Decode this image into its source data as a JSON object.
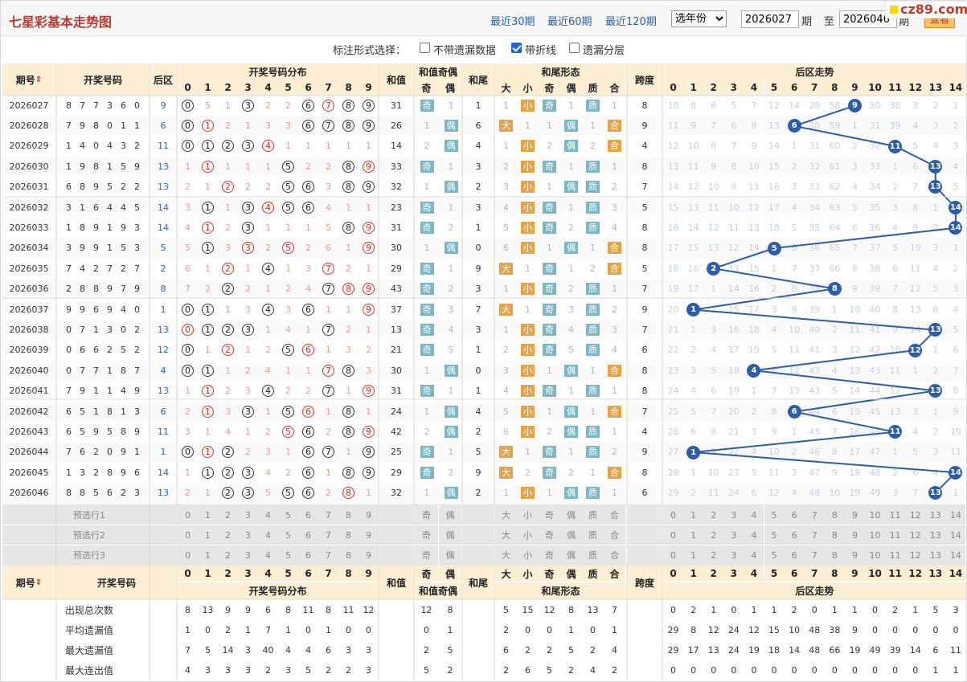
{
  "header": {
    "title": "七星彩基本走势图",
    "recent": [
      "最近30期",
      "最近60期",
      "最近120期"
    ],
    "year_select": "选年份",
    "from_issue": "2026027",
    "period_label": "期",
    "to_label": "至",
    "to_issue": "2026046",
    "period_label2": "期",
    "query": "查看",
    "watermark": "cz89.com"
  },
  "options": {
    "label": "标注形式选择：",
    "items": [
      {
        "label": "不带遗漏数据",
        "checked": false
      },
      {
        "label": "带折线",
        "checked": true
      },
      {
        "label": "遗漏分层",
        "checked": false
      }
    ]
  },
  "columns": {
    "issue": "期号",
    "draw": "开奖号码",
    "back": "后区",
    "dist": "开奖号码分布",
    "sum": "和值",
    "parity": "和值奇偶",
    "odd": "奇",
    "even": "偶",
    "tail": "和尾",
    "shape": "和尾形态",
    "shape_labels": [
      "大",
      "小",
      "奇",
      "偶",
      "质",
      "合"
    ],
    "span": "跨度",
    "trend": "后区走势"
  },
  "digits": [
    "0",
    "1",
    "2",
    "3",
    "4",
    "5",
    "6",
    "7",
    "8",
    "9"
  ],
  "trend_digits": [
    "0",
    "1",
    "2",
    "3",
    "4",
    "5",
    "6",
    "7",
    "8",
    "9",
    "10",
    "11",
    "12",
    "13",
    "14"
  ],
  "rows": [
    {
      "issue": "2026027",
      "nums": [
        "8",
        "7",
        "7",
        "3",
        "6",
        "0"
      ],
      "back": "9",
      "dist": [
        "B",
        "5",
        "1",
        "B",
        "2",
        "2",
        "B",
        "R",
        "B",
        "B"
      ],
      "sum": "31",
      "pa": [
        "奇",
        "1"
      ],
      "tail": "1",
      "shape": [
        "1",
        "小",
        "奇",
        "1",
        "质",
        "1"
      ],
      "span": "8",
      "trend": [
        "10",
        "8",
        "6",
        "5",
        "7",
        "12",
        "14",
        "29",
        "58",
        "B",
        "30",
        "38",
        "3",
        "2",
        "1"
      ]
    },
    {
      "issue": "2026028",
      "nums": [
        "7",
        "9",
        "8",
        "0",
        "1",
        "1"
      ],
      "back": "6",
      "dist": [
        "B",
        "R",
        "2",
        "1",
        "3",
        "3",
        "B",
        "B",
        "B",
        "B"
      ],
      "sum": "26",
      "pa": [
        "1",
        "偶"
      ],
      "tail": "6",
      "shape": [
        "大",
        "1",
        "1",
        "偶",
        "1",
        "合"
      ],
      "span": "9",
      "trend": [
        "11",
        "9",
        "7",
        "6",
        "8",
        "13",
        "B",
        "30",
        "59",
        "1",
        "31",
        "39",
        "4",
        "3",
        "2"
      ]
    },
    {
      "issue": "2026029",
      "nums": [
        "1",
        "4",
        "0",
        "4",
        "3",
        "2"
      ],
      "back": "11",
      "dist": [
        "B",
        "B",
        "B",
        "B",
        "R",
        "1",
        "1",
        "1",
        "1",
        "1"
      ],
      "sum": "14",
      "pa": [
        "2",
        "偶"
      ],
      "tail": "4",
      "shape": [
        "1",
        "小",
        "2",
        "偶",
        "2",
        "合"
      ],
      "span": "4",
      "trend": [
        "12",
        "10",
        "8",
        "7",
        "9",
        "14",
        "1",
        "31",
        "60",
        "2",
        "32",
        "B",
        "5",
        "4",
        "3"
      ]
    },
    {
      "issue": "2026030",
      "nums": [
        "1",
        "9",
        "8",
        "1",
        "5",
        "9"
      ],
      "back": "13",
      "dist": [
        "1",
        "R",
        "1",
        "1",
        "1",
        "B",
        "2",
        "2",
        "B",
        "R"
      ],
      "sum": "33",
      "pa": [
        "奇",
        "1"
      ],
      "tail": "3",
      "shape": [
        "2",
        "小",
        "奇",
        "1",
        "质",
        "1"
      ],
      "span": "8",
      "trend": [
        "13",
        "11",
        "9",
        "8",
        "10",
        "15",
        "2",
        "32",
        "61",
        "3",
        "33",
        "1",
        "6",
        "B",
        "4"
      ]
    },
    {
      "issue": "2026031",
      "nums": [
        "6",
        "8",
        "9",
        "5",
        "2",
        "2"
      ],
      "back": "13",
      "dist": [
        "2",
        "1",
        "R",
        "2",
        "2",
        "B",
        "B",
        "3",
        "B",
        "B"
      ],
      "sum": "32",
      "pa": [
        "1",
        "偶"
      ],
      "tail": "2",
      "shape": [
        "3",
        "小",
        "1",
        "偶",
        "质",
        "2"
      ],
      "span": "7",
      "trend": [
        "14",
        "12",
        "10",
        "9",
        "11",
        "16",
        "3",
        "33",
        "62",
        "4",
        "34",
        "2",
        "7",
        "B",
        "5"
      ]
    },
    {
      "issue": "2026032",
      "nums": [
        "3",
        "1",
        "6",
        "4",
        "4",
        "5"
      ],
      "back": "14",
      "dist": [
        "3",
        "B",
        "1",
        "B",
        "R",
        "B",
        "B",
        "4",
        "1",
        "1"
      ],
      "sum": "23",
      "pa": [
        "奇",
        "1"
      ],
      "tail": "3",
      "shape": [
        "4",
        "小",
        "奇",
        "1",
        "质",
        "3"
      ],
      "span": "5",
      "trend": [
        "15",
        "13",
        "11",
        "10",
        "12",
        "17",
        "4",
        "34",
        "63",
        "5",
        "35",
        "3",
        "8",
        "1",
        "B"
      ]
    },
    {
      "issue": "2026033",
      "nums": [
        "1",
        "8",
        "9",
        "1",
        "9",
        "3"
      ],
      "back": "14",
      "dist": [
        "4",
        "R",
        "2",
        "B",
        "1",
        "1",
        "1",
        "5",
        "B",
        "R"
      ],
      "sum": "31",
      "pa": [
        "奇",
        "2"
      ],
      "tail": "1",
      "shape": [
        "5",
        "小",
        "奇",
        "2",
        "质",
        "4"
      ],
      "span": "8",
      "trend": [
        "16",
        "14",
        "12",
        "11",
        "13",
        "18",
        "5",
        "35",
        "64",
        "6",
        "36",
        "4",
        "9",
        "2",
        "B"
      ]
    },
    {
      "issue": "2026034",
      "nums": [
        "3",
        "9",
        "9",
        "1",
        "5",
        "3"
      ],
      "back": "5",
      "dist": [
        "5",
        "B",
        "3",
        "R",
        "2",
        "R",
        "2",
        "6",
        "1",
        "R"
      ],
      "sum": "30",
      "pa": [
        "1",
        "偶"
      ],
      "tail": "0",
      "shape": [
        "6",
        "小",
        "1",
        "偶",
        "1",
        "合"
      ],
      "span": "8",
      "trend": [
        "17",
        "15",
        "13",
        "12",
        "14",
        "B",
        "6",
        "36",
        "65",
        "7",
        "37",
        "5",
        "10",
        "3",
        "1"
      ]
    },
    {
      "issue": "2026035",
      "nums": [
        "7",
        "4",
        "2",
        "7",
        "2",
        "7"
      ],
      "back": "2",
      "dist": [
        "6",
        "1",
        "R",
        "1",
        "B",
        "1",
        "3",
        "R",
        "2",
        "1"
      ],
      "sum": "29",
      "pa": [
        "奇",
        "1"
      ],
      "tail": "9",
      "shape": [
        "大",
        "1",
        "奇",
        "1",
        "2",
        "合"
      ],
      "span": "5",
      "trend": [
        "18",
        "16",
        "B",
        "13",
        "15",
        "1",
        "7",
        "37",
        "66",
        "8",
        "38",
        "6",
        "11",
        "4",
        "2"
      ]
    },
    {
      "issue": "2026036",
      "nums": [
        "2",
        "8",
        "8",
        "9",
        "7",
        "9"
      ],
      "back": "8",
      "dist": [
        "7",
        "2",
        "B",
        "2",
        "1",
        "2",
        "4",
        "B",
        "R",
        "R"
      ],
      "sum": "43",
      "pa": [
        "奇",
        "2"
      ],
      "tail": "3",
      "shape": [
        "1",
        "小",
        "奇",
        "2",
        "质",
        "1"
      ],
      "span": "7",
      "trend": [
        "19",
        "17",
        "1",
        "14",
        "16",
        "2",
        "8",
        "38",
        "B",
        "9",
        "39",
        "7",
        "12",
        "5",
        "3"
      ]
    },
    {
      "issue": "2026037",
      "nums": [
        "9",
        "9",
        "6",
        "9",
        "4",
        "0"
      ],
      "back": "1",
      "dist": [
        "B",
        "B",
        "1",
        "3",
        "B",
        "3",
        "B",
        "1",
        "1",
        "R"
      ],
      "sum": "37",
      "pa": [
        "奇",
        "3"
      ],
      "tail": "7",
      "shape": [
        "大",
        "1",
        "奇",
        "3",
        "质",
        "2"
      ],
      "span": "9",
      "trend": [
        "20",
        "B",
        "2",
        "15",
        "17",
        "3",
        "9",
        "39",
        "1",
        "10",
        "40",
        "8",
        "13",
        "6",
        "4"
      ]
    },
    {
      "issue": "2026038",
      "nums": [
        "0",
        "7",
        "1",
        "3",
        "0",
        "2"
      ],
      "back": "13",
      "dist": [
        "R",
        "B",
        "B",
        "B",
        "1",
        "4",
        "1",
        "B",
        "2",
        "1"
      ],
      "sum": "13",
      "pa": [
        "奇",
        "4"
      ],
      "tail": "3",
      "shape": [
        "1",
        "小",
        "奇",
        "4",
        "质",
        "3"
      ],
      "span": "7",
      "trend": [
        "21",
        "1",
        "3",
        "16",
        "18",
        "4",
        "10",
        "40",
        "2",
        "11",
        "41",
        "9",
        "14",
        "B",
        "5"
      ]
    },
    {
      "issue": "2026039",
      "nums": [
        "0",
        "6",
        "6",
        "2",
        "5",
        "2"
      ],
      "back": "12",
      "dist": [
        "B",
        "1",
        "R",
        "1",
        "2",
        "B",
        "R",
        "1",
        "3",
        "2"
      ],
      "sum": "21",
      "pa": [
        "奇",
        "5"
      ],
      "tail": "1",
      "shape": [
        "2",
        "小",
        "奇",
        "5",
        "质",
        "4"
      ],
      "span": "6",
      "trend": [
        "22",
        "2",
        "4",
        "17",
        "19",
        "5",
        "11",
        "41",
        "3",
        "12",
        "42",
        "10",
        "B",
        "1",
        "6"
      ]
    },
    {
      "issue": "2026040",
      "nums": [
        "0",
        "7",
        "7",
        "1",
        "8",
        "7"
      ],
      "back": "4",
      "dist": [
        "B",
        "B",
        "1",
        "2",
        "4",
        "1",
        "1",
        "R",
        "B",
        "3"
      ],
      "sum": "30",
      "pa": [
        "1",
        "偶"
      ],
      "tail": "0",
      "shape": [
        "3",
        "小",
        "1",
        "偶",
        "1",
        "合"
      ],
      "span": "8",
      "trend": [
        "23",
        "3",
        "5",
        "18",
        "B",
        "6",
        "12",
        "42",
        "4",
        "13",
        "43",
        "11",
        "1",
        "2",
        "7"
      ]
    },
    {
      "issue": "2026041",
      "nums": [
        "7",
        "9",
        "1",
        "1",
        "4",
        "9"
      ],
      "back": "13",
      "dist": [
        "1",
        "R",
        "2",
        "3",
        "B",
        "2",
        "2",
        "B",
        "1",
        "R"
      ],
      "sum": "31",
      "pa": [
        "奇",
        "1"
      ],
      "tail": "1",
      "shape": [
        "4",
        "小",
        "奇",
        "1",
        "质",
        "1"
      ],
      "span": "8",
      "trend": [
        "24",
        "4",
        "6",
        "19",
        "1",
        "7",
        "13",
        "43",
        "5",
        "14",
        "44",
        "12",
        "2",
        "B",
        "8"
      ]
    },
    {
      "issue": "2026042",
      "nums": [
        "6",
        "5",
        "1",
        "8",
        "1",
        "3"
      ],
      "back": "6",
      "dist": [
        "2",
        "R",
        "3",
        "B",
        "1",
        "B",
        "R",
        "1",
        "B",
        "1"
      ],
      "sum": "24",
      "pa": [
        "1",
        "偶"
      ],
      "tail": "4",
      "shape": [
        "5",
        "小",
        "1",
        "偶",
        "1",
        "合"
      ],
      "span": "7",
      "trend": [
        "25",
        "5",
        "7",
        "20",
        "2",
        "8",
        "B",
        "44",
        "6",
        "15",
        "45",
        "13",
        "3",
        "1",
        "9"
      ]
    },
    {
      "issue": "2026043",
      "nums": [
        "6",
        "5",
        "9",
        "5",
        "8",
        "9"
      ],
      "back": "11",
      "dist": [
        "3",
        "1",
        "4",
        "1",
        "2",
        "R",
        "B",
        "2",
        "B",
        "R"
      ],
      "sum": "42",
      "pa": [
        "2",
        "偶"
      ],
      "tail": "2",
      "shape": [
        "6",
        "小",
        "2",
        "偶",
        "质",
        "1"
      ],
      "span": "4",
      "trend": [
        "26",
        "6",
        "8",
        "21",
        "3",
        "9",
        "1",
        "45",
        "7",
        "16",
        "46",
        "B",
        "4",
        "2",
        "10"
      ]
    },
    {
      "issue": "2026044",
      "nums": [
        "7",
        "6",
        "2",
        "0",
        "9",
        "1"
      ],
      "back": "1",
      "dist": [
        "B",
        "R",
        "B",
        "2",
        "3",
        "1",
        "B",
        "B",
        "1",
        "B"
      ],
      "sum": "25",
      "pa": [
        "奇",
        "1"
      ],
      "tail": "5",
      "shape": [
        "大",
        "1",
        "奇",
        "1",
        "质",
        "2"
      ],
      "span": "9",
      "trend": [
        "27",
        "B",
        "9",
        "22",
        "4",
        "10",
        "2",
        "46",
        "8",
        "17",
        "47",
        "1",
        "5",
        "3",
        "11"
      ]
    },
    {
      "issue": "2026045",
      "nums": [
        "1",
        "3",
        "2",
        "8",
        "9",
        "6"
      ],
      "back": "14",
      "dist": [
        "1",
        "B",
        "B",
        "B",
        "4",
        "2",
        "B",
        "1",
        "B",
        "B"
      ],
      "sum": "29",
      "pa": [
        "奇",
        "2"
      ],
      "tail": "9",
      "shape": [
        "大",
        "2",
        "奇",
        "2",
        "1",
        "合"
      ],
      "span": "8",
      "trend": [
        "28",
        "1",
        "10",
        "23",
        "5",
        "11",
        "3",
        "47",
        "9",
        "18",
        "48",
        "2",
        "6",
        "4",
        "B"
      ]
    },
    {
      "issue": "2026046",
      "nums": [
        "8",
        "8",
        "5",
        "6",
        "2",
        "3"
      ],
      "back": "13",
      "dist": [
        "2",
        "1",
        "B",
        "B",
        "5",
        "B",
        "B",
        "2",
        "R",
        "1"
      ],
      "sum": "32",
      "pa": [
        "1",
        "偶"
      ],
      "tail": "2",
      "shape": [
        "1",
        "小",
        "1",
        "偶",
        "质",
        "1"
      ],
      "span": "6",
      "trend": [
        "29",
        "2",
        "11",
        "24",
        "6",
        "12",
        "4",
        "48",
        "10",
        "19",
        "49",
        "3",
        "7",
        "B",
        "1"
      ]
    }
  ],
  "preselect": [
    "预选行1",
    "预选行2",
    "预选行3"
  ],
  "stats": [
    {
      "label": "出现总次数",
      "dist": [
        "8",
        "13",
        "9",
        "9",
        "6",
        "8",
        "11",
        "8",
        "11",
        "12"
      ],
      "pa": [
        "12",
        "8"
      ],
      "shape": [
        "5",
        "15",
        "12",
        "8",
        "13",
        "7"
      ],
      "trend": [
        "0",
        "2",
        "1",
        "0",
        "1",
        "1",
        "2",
        "0",
        "1",
        "1",
        "0",
        "2",
        "1",
        "5",
        "3"
      ]
    },
    {
      "label": "平均遗漏值",
      "dist": [
        "1",
        "0",
        "2",
        "1",
        "7",
        "1",
        "0",
        "1",
        "0",
        "0"
      ],
      "pa": [
        "0",
        "1"
      ],
      "shape": [
        "2",
        "0",
        "0",
        "1",
        "0",
        "1"
      ],
      "trend": [
        "29",
        "8",
        "12",
        "24",
        "12",
        "15",
        "10",
        "48",
        "38",
        "9",
        "0",
        "0",
        "0",
        "0",
        "0"
      ]
    },
    {
      "label": "最大遗漏值",
      "dist": [
        "7",
        "5",
        "14",
        "3",
        "40",
        "4",
        "4",
        "6",
        "3",
        "3"
      ],
      "pa": [
        "2",
        "5"
      ],
      "shape": [
        "6",
        "2",
        "2",
        "5",
        "2",
        "4"
      ],
      "trend": [
        "29",
        "17",
        "13",
        "24",
        "19",
        "18",
        "14",
        "48",
        "66",
        "19",
        "49",
        "39",
        "14",
        "6",
        "11"
      ]
    },
    {
      "label": "最大连出值",
      "dist": [
        "4",
        "3",
        "3",
        "3",
        "2",
        "3",
        "5",
        "2",
        "2",
        "3"
      ],
      "pa": [
        "5",
        "2"
      ],
      "shape": [
        "2",
        "6",
        "5",
        "2",
        "4",
        "2"
      ],
      "trend": [
        "0",
        "0",
        "0",
        "0",
        "0",
        "0",
        "0",
        "0",
        "0",
        "0",
        "0",
        "0",
        "0",
        "1",
        "1"
      ]
    }
  ],
  "colors": {
    "header_bg": "#fcefd3",
    "ball_red": "#d4302b",
    "trend_ball": "#2b5ea7",
    "odd_tag": "#e6a44a",
    "even_tag": "#7bb8c4"
  }
}
